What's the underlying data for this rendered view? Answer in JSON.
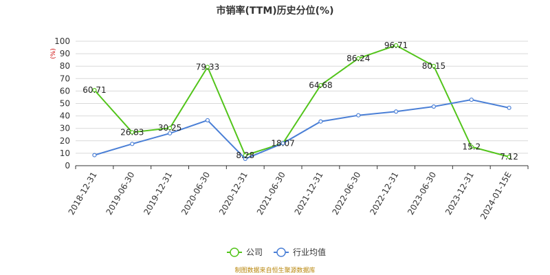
{
  "chart_data": {
    "type": "line",
    "title": "市销率(TTM)历史分位(%)",
    "y_unit": "(%)",
    "ylim": [
      0,
      100
    ],
    "y_ticks": [
      0,
      10,
      20,
      30,
      40,
      50,
      60,
      70,
      80,
      90,
      100
    ],
    "grid": true,
    "legend_position": "bottom",
    "x": [
      "2018-12-31",
      "2019-06-30",
      "2019-12-31",
      "2020-06-30",
      "2020-12-31",
      "2021-06-30",
      "2021-12-31",
      "2022-06-30",
      "2022-12-31",
      "2023-06-30",
      "2023-12-31",
      "2024-01-15E"
    ],
    "series": [
      {
        "name": "公司",
        "color": "#52c41a",
        "values": [
          60.71,
          26.83,
          30.25,
          79.33,
          8.28,
          18.07,
          64.68,
          86.24,
          96.71,
          80.15,
          15.2,
          7.12
        ],
        "labels": [
          "60.71",
          "26.83",
          "30.25",
          "79.33",
          "8.28",
          "18.07",
          "64.68",
          "86.24",
          "96.71",
          "80.15",
          "15.2",
          "7.12"
        ]
      },
      {
        "name": "行业均值",
        "color": "#4a7fd6",
        "values": [
          8.5,
          17.5,
          26,
          36.5,
          5.5,
          18,
          35.5,
          40.5,
          43.5,
          47.5,
          53,
          46.5
        ]
      }
    ],
    "source": "制图数据来自恒生聚源数据库"
  }
}
